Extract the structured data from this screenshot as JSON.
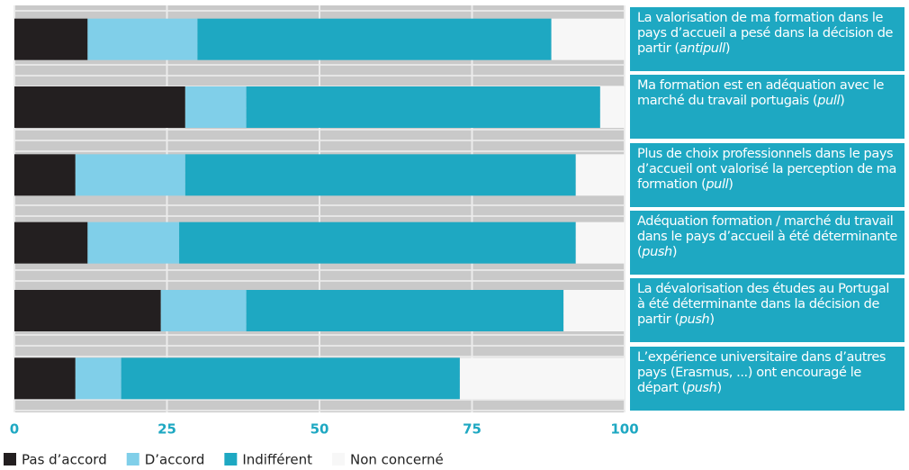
{
  "chart_data": {
    "type": "stacked-barh",
    "categories": [
      [
        "La valorisation de ma formation dans le pays d’accueil a pesé dans la décision de partir (",
        "antipull",
        ")"
      ],
      [
        "Ma formation est en adéquation avec le marché du travail portugais (",
        "pull",
        ")"
      ],
      [
        "Plus de choix professionnels dans le pays d’accueil ont valorisé la perception de ma formation (",
        "pull",
        ")"
      ],
      [
        "Adéquation formation / marché du travail dans le pays d’accueil à été déterminante (",
        "push",
        ")"
      ],
      [
        "La dévalorisation des études au Portugal à été déterminante dans la décision de partir (",
        "push",
        ")"
      ],
      [
        "L’expérience universitaire dans d’autres pays (Erasmus, ...) ont encouragé le départ (",
        "push",
        ")"
      ]
    ],
    "series": [
      {
        "name": "Pas d’accord",
        "color": "#231f20",
        "values": [
          12,
          28,
          10,
          12,
          24,
          10
        ]
      },
      {
        "name": "D’accord",
        "color": "#80cfe9",
        "values": [
          18,
          10,
          18,
          15,
          14,
          7.5
        ]
      },
      {
        "name": "Indifférent",
        "color": "#1ea8c2",
        "values": [
          58,
          58,
          64,
          65,
          52,
          55.5
        ]
      },
      {
        "name": "Non concerné",
        "color": "#f7f7f7",
        "values": [
          12,
          4,
          8,
          8,
          10,
          27
        ]
      }
    ],
    "xlim": [
      0,
      100
    ],
    "xticks": [
      0,
      25,
      50,
      75,
      100
    ],
    "grid": true
  }
}
